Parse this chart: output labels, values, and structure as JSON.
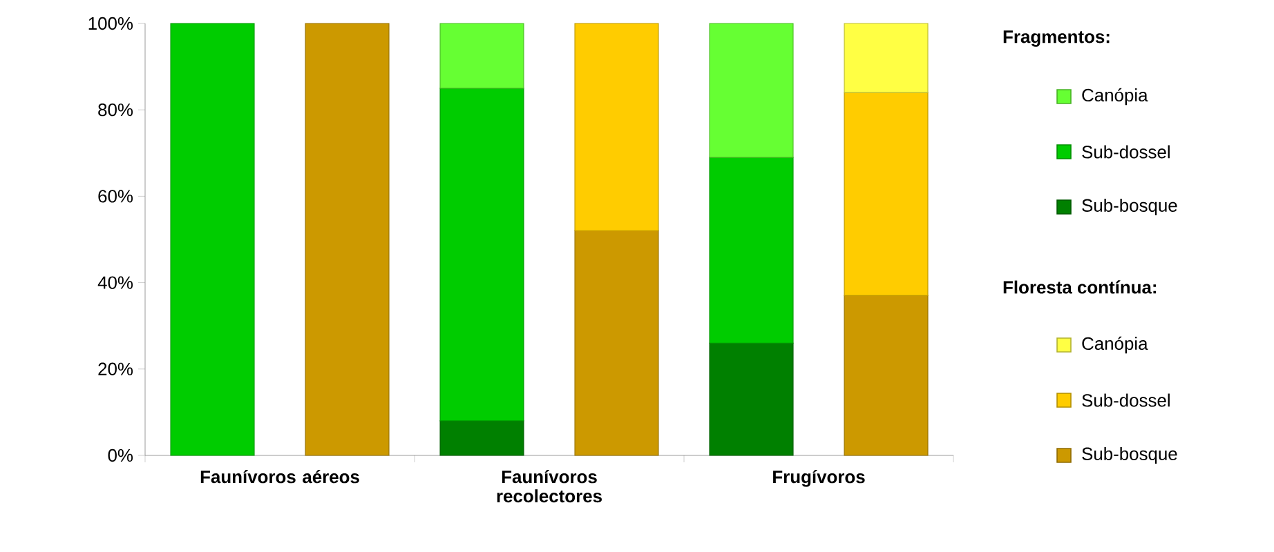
{
  "chart_data": {
    "type": "bar",
    "stacked": true,
    "legend": "right",
    "legend_title": [
      "Fragmentos:",
      "Floresta contínua:"
    ],
    "categories": [
      "Faunívoros aéreos",
      null,
      "Faunívoros recolectores",
      null,
      "Frugívoros",
      null
    ],
    "series": [
      {
        "name": "Sub-bosque",
        "color": "#008000",
        "values": [
          0,
          null,
          8,
          null,
          26,
          null
        ]
      },
      {
        "name": "Sub-dossel",
        "color": "#00cc00",
        "values": [
          100,
          null,
          77,
          null,
          43,
          null
        ]
      },
      {
        "name": "Canópia",
        "color": "#66ff33",
        "values": [
          0,
          null,
          15,
          null,
          31,
          null
        ]
      },
      {
        "name": "Sub-bosque",
        "color": "#cc9900",
        "values": [
          null,
          100,
          null,
          52,
          null,
          37
        ]
      },
      {
        "name": "Sub-dossel",
        "color": "#ffcc00",
        "values": [
          null,
          0,
          null,
          48,
          null,
          47
        ]
      },
      {
        "name": "Canópia",
        "color": "#ffff44",
        "values": [
          null,
          0,
          null,
          0,
          null,
          16
        ]
      }
    ],
    "ylim": [
      0,
      100
    ],
    "yticks": [
      {
        "value": 0,
        "label": "0%"
      },
      {
        "value": 20,
        "label": "20%"
      },
      {
        "value": 40,
        "label": "40%"
      },
      {
        "value": 60,
        "label": "60%"
      },
      {
        "value": 80,
        "label": "80%"
      },
      {
        "value": 100,
        "label": "100%"
      }
    ]
  }
}
